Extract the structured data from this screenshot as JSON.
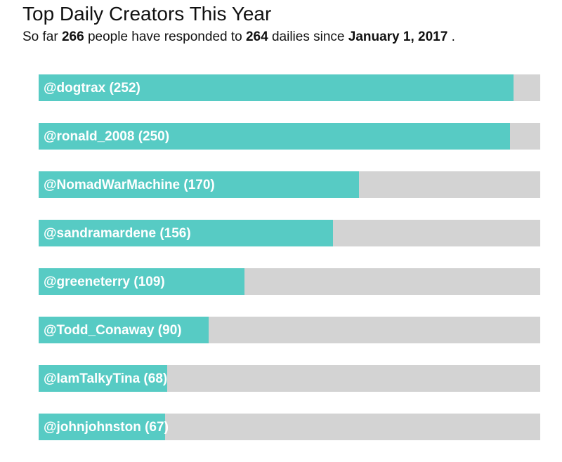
{
  "header": {
    "title": "Top Daily Creators This Year",
    "subtitle_prefix": "So far",
    "people_count": "266",
    "subtitle_middle": "people have responded to",
    "dailies_count": "264",
    "subtitle_after": "dailies since",
    "since_date": "January 1, 2017",
    "subtitle_end": "."
  },
  "colors": {
    "fill": "#57cbc4",
    "track": "#d3d3d3",
    "label": "#ffffff"
  },
  "chart_data": {
    "type": "bar",
    "orientation": "horizontal",
    "title": "Top Daily Creators This Year",
    "xlim": [
      0,
      266
    ],
    "categories": [
      "@dogtrax",
      "@ronald_2008",
      "@NomadWarMachine",
      "@sandramardene",
      "@greeneterry",
      "@Todd_Conaway",
      "@IamTalkyTina",
      "@johnjohnston"
    ],
    "values": [
      252,
      250,
      170,
      156,
      109,
      90,
      68,
      67
    ],
    "labels": [
      "@dogtrax (252)",
      "@ronald_2008 (250)",
      "@NomadWarMachine (170)",
      "@sandramardene (156)",
      "@greeneterry (109)",
      "@Todd_Conaway (90)",
      "@IamTalkyTina (68)",
      "@johnjohnston (67)"
    ]
  }
}
